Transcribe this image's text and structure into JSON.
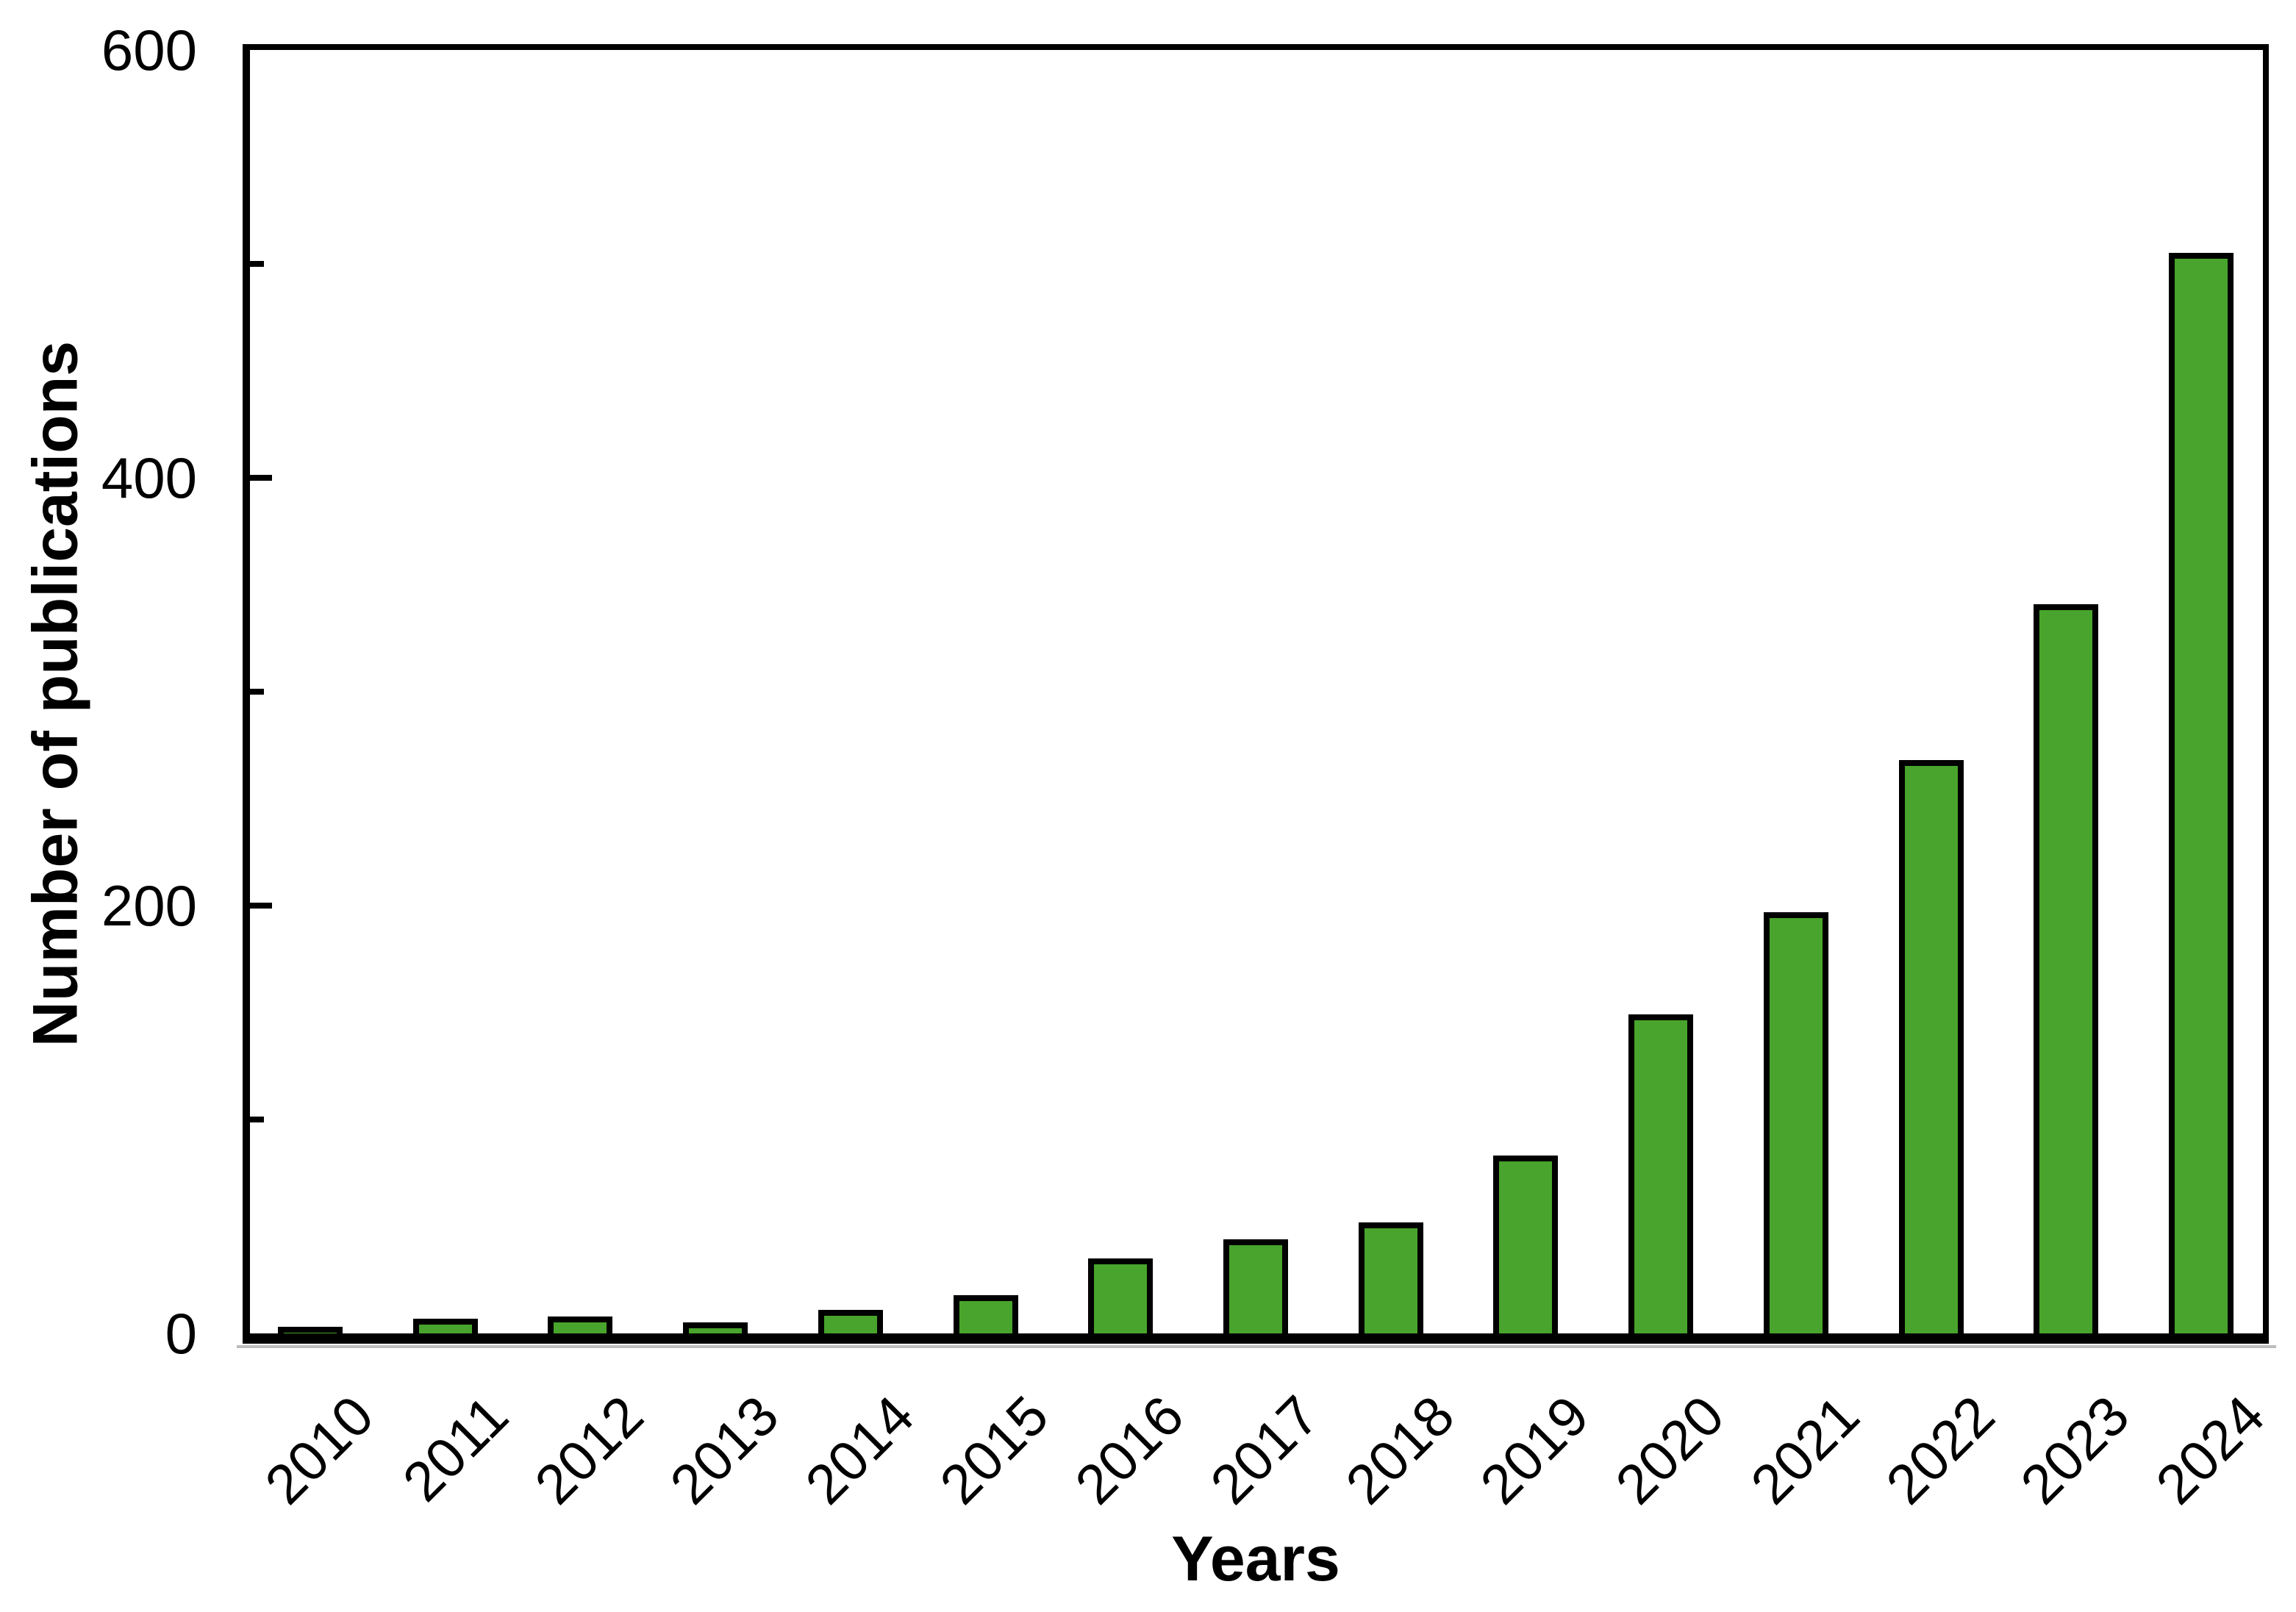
{
  "chart_data": {
    "type": "bar",
    "categories": [
      "2010",
      "2011",
      "2012",
      "2013",
      "2014",
      "2015",
      "2016",
      "2017",
      "2018",
      "2019",
      "2020",
      "2021",
      "2022",
      "2023",
      "2024"
    ],
    "values": [
      3,
      7,
      8,
      5,
      11,
      18,
      35,
      44,
      52,
      83,
      149,
      197,
      268,
      341,
      505
    ],
    "xlabel": "Years",
    "ylabel": "Number of publications",
    "ylim": [
      0,
      600
    ],
    "ytick_label_values": [
      0,
      200,
      400,
      600
    ],
    "minor_tick_values": [
      100,
      300,
      500
    ],
    "grid": false,
    "legend": false,
    "bar_color": "#48A42C",
    "bar_border_color": "#000000",
    "frame_color": "#000000",
    "background_color": "#FFFFFF"
  }
}
